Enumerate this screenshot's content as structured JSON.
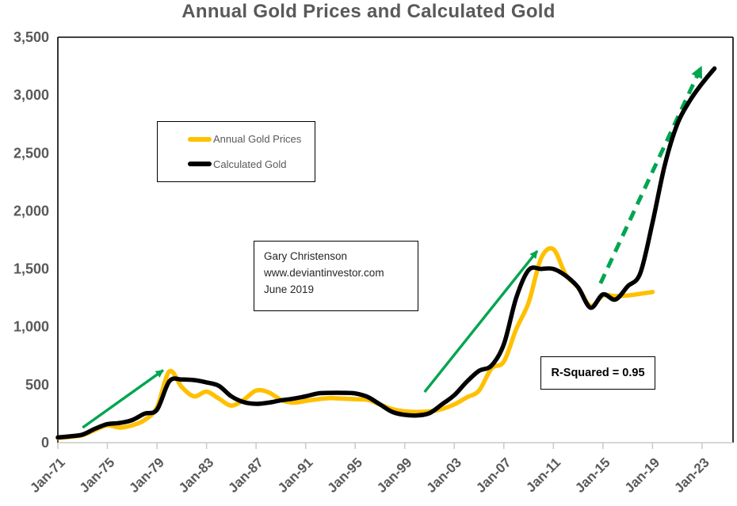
{
  "page": {
    "background": "#FFFFFF"
  },
  "chart": {
    "title": "Annual Gold Prices and Calculated Gold",
    "legend": {
      "items": [
        {
          "label": "Annual Gold Prices",
          "color": "#FFC000"
        },
        {
          "label": "Calculated Gold",
          "color": "#000000"
        }
      ]
    },
    "annotation_box": {
      "lines": [
        "Gary Christenson",
        "www.deviantinvestor.com",
        "June 2019"
      ]
    },
    "r_squared_label": "R-Squared = 0.95"
  },
  "colors": {
    "title": "#595959",
    "axis_label": "#595959",
    "axis_line": "#C9C9C9",
    "plot_border": "#000000",
    "gold": "#FFC000",
    "black": "#000000",
    "green": "#00A550",
    "background": "#FFFFFF"
  },
  "chart_data": {
    "type": "line",
    "title": "Annual Gold Prices and Calculated Gold",
    "xlabel": "",
    "ylabel": "",
    "grid": "off",
    "legend_position": "inside-top-left",
    "x_axis": {
      "tick_labels": [
        "Jan-71",
        "Jan-75",
        "Jan-79",
        "Jan-83",
        "Jan-87",
        "Jan-91",
        "Jan-95",
        "Jan-99",
        "Jan-03",
        "Jan-07",
        "Jan-11",
        "Jan-15",
        "Jan-19",
        "Jan-23"
      ],
      "tick_years": [
        1971,
        1975,
        1979,
        1983,
        1987,
        1991,
        1995,
        1999,
        2003,
        2007,
        2011,
        2015,
        2019,
        2023
      ],
      "range_years": [
        1971,
        2025.5
      ]
    },
    "y_axis": {
      "tick_labels": [
        "0",
        "500",
        "1,000",
        "1,500",
        "2,000",
        "2,500",
        "3,000",
        "3,500"
      ],
      "tick_values": [
        0,
        500,
        1000,
        1500,
        2000,
        2500,
        3000,
        3500
      ],
      "range": [
        0,
        3500
      ]
    },
    "series": [
      {
        "name": "Annual Gold Prices",
        "color": "#FFC000",
        "stroke_width": 5.5,
        "years": [
          1971,
          1972,
          1973,
          1974,
          1975,
          1976,
          1977,
          1978,
          1979,
          1980,
          1981,
          1982,
          1983,
          1984,
          1985,
          1986,
          1987,
          1988,
          1989,
          1990,
          1991,
          1992,
          1993,
          1994,
          1995,
          1996,
          1997,
          1998,
          1999,
          2000,
          2001,
          2002,
          2003,
          2004,
          2005,
          2006,
          2007,
          2008,
          2009,
          2010,
          2011,
          2012,
          2013,
          2014,
          2015,
          2016,
          2017,
          2018,
          2019
        ],
        "values": [
          40,
          50,
          65,
          110,
          150,
          130,
          150,
          195,
          305,
          615,
          480,
          400,
          440,
          380,
          320,
          370,
          450,
          435,
          370,
          345,
          360,
          375,
          385,
          380,
          375,
          370,
          330,
          290,
          270,
          265,
          270,
          290,
          330,
          390,
          450,
          640,
          700,
          980,
          1210,
          1590,
          1670,
          1450,
          1340,
          1180,
          1270,
          1265,
          1270,
          1285,
          1300
        ]
      },
      {
        "name": "Calculated Gold",
        "color": "#000000",
        "stroke_width": 5.5,
        "years": [
          1971,
          1972,
          1973,
          1974,
          1975,
          1976,
          1977,
          1978,
          1979,
          1980,
          1981,
          1982,
          1983,
          1984,
          1985,
          1986,
          1987,
          1988,
          1989,
          1990,
          1991,
          1992,
          1993,
          1994,
          1995,
          1996,
          1997,
          1998,
          1999,
          2000,
          2001,
          2002,
          2003,
          2004,
          2005,
          2006,
          2007,
          2008,
          2009,
          2010,
          2011,
          2012,
          2013,
          2014,
          2015,
          2016,
          2017,
          2018,
          2019,
          2020,
          2021,
          2022,
          2023,
          2024
        ],
        "values": [
          45,
          55,
          70,
          120,
          160,
          170,
          195,
          250,
          285,
          530,
          545,
          540,
          520,
          490,
          400,
          350,
          335,
          345,
          365,
          380,
          400,
          425,
          430,
          430,
          425,
          395,
          330,
          265,
          240,
          235,
          255,
          330,
          410,
          525,
          620,
          665,
          850,
          1250,
          1490,
          1500,
          1500,
          1440,
          1340,
          1165,
          1280,
          1235,
          1350,
          1460,
          1900,
          2400,
          2750,
          2950,
          3100,
          3230
        ]
      }
    ],
    "annotations": {
      "arrows": [
        {
          "name": "trend-arrow-1970s",
          "style": "solid",
          "color": "#00A550",
          "from": {
            "year": 1973.0,
            "value": 130
          },
          "to": {
            "year": 1979.5,
            "value": 625
          }
        },
        {
          "name": "trend-arrow-2000s",
          "style": "solid",
          "color": "#00A550",
          "from": {
            "year": 2000.6,
            "value": 437
          },
          "to": {
            "year": 2009.7,
            "value": 1655
          }
        },
        {
          "name": "projection-arrow",
          "style": "dashed",
          "color": "#00A550",
          "from": {
            "year": 2014.8,
            "value": 1375
          },
          "to": {
            "year": 2022.9,
            "value": 3235
          }
        }
      ],
      "text_box": {
        "lines": [
          "Gary Christenson",
          "www.deviantinvestor.com",
          "June 2019"
        ]
      },
      "stat_box": {
        "text": "R-Squared = 0.95"
      }
    }
  }
}
